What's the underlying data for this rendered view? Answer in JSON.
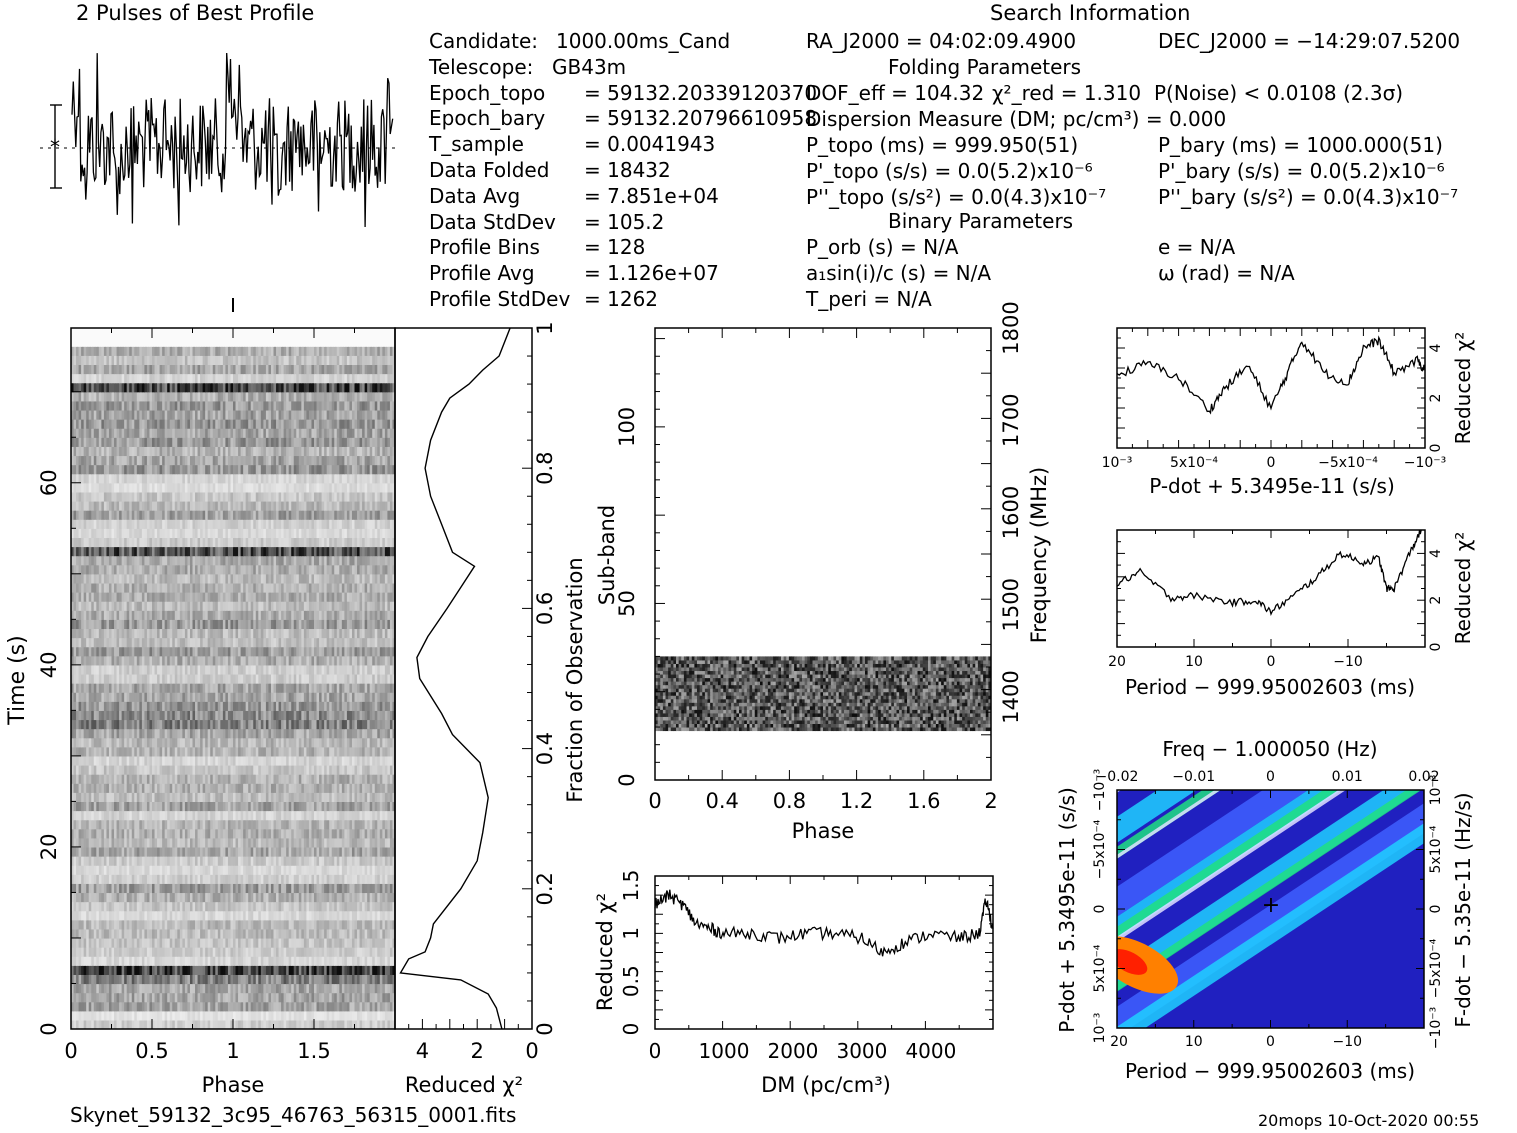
{
  "header": {
    "profile_title": "2 Pulses of Best Profile",
    "search_title": "Search Information",
    "folding_title": "Folding Parameters",
    "binary_title": "Binary Parameters",
    "footer_file": "Skynet_59132_3c95_46763_56315_0001.fits",
    "footer_stamp": "20mops 10-Oct-2020 00:55"
  },
  "candidate_info": [
    {
      "label": "Candidate:",
      "value": "1000.00ms_Cand"
    },
    {
      "label": "Telescope:",
      "value": "GB43m"
    },
    {
      "label": "Epoch_topo",
      "value": "= 59132.20339120370"
    },
    {
      "label": "Epoch_bary",
      "value": "= 59132.20796610958"
    },
    {
      "label": "T_sample",
      "value": "= 0.0041943"
    },
    {
      "label": "Data Folded",
      "value": "= 18432"
    },
    {
      "label": "Data Avg",
      "value": "= 7.851e+04"
    },
    {
      "label": "Data StdDev",
      "value": "= 105.2"
    },
    {
      "label": "Profile Bins",
      "value": "= 128"
    },
    {
      "label": "Profile Avg",
      "value": "= 1.126e+07"
    },
    {
      "label": "Profile StdDev",
      "value": "= 1262"
    }
  ],
  "search_info": {
    "ra": "RA_J2000 = 04:02:09.4900",
    "dec": "DEC_J2000 = −14:29:07.5200",
    "dof": "DOF_eff = 104.32",
    "chi2": "χ²_red = 1.310",
    "pnoise": "P(Noise) < 0.0108 (2.3σ)",
    "dm": "Dispersion Measure (DM; pc/cm³) = 0.000",
    "ptopo": "P_topo (ms) = 999.950(51)",
    "pbary": "P_bary (ms) = 1000.000(51)",
    "pdtopo": "P'_topo (s/s) = 0.0(5.2)x10⁻⁶",
    "pdbary": "P'_bary (s/s) = 0.0(5.2)x10⁻⁶",
    "pddtopo": "P''_topo (s/s²) = 0.0(4.3)x10⁻⁷",
    "pddbary": "P''_bary (s/s²) = 0.0(4.3)x10⁻⁷",
    "porb": "P_orb (s) = N/A",
    "e": "e = N/A",
    "a1": "a₁sin(i)/c (s) = N/A",
    "omega": "ω (rad) = N/A",
    "tperi": "T_peri = N/A"
  },
  "chart_data": [
    {
      "id": "profile",
      "type": "line",
      "title": "2 Pulses of Best Profile",
      "x_range": [
        0,
        2
      ],
      "note": "noisy folded profile, two pulses"
    },
    {
      "id": "time_phase",
      "type": "heatmap",
      "xlabel": "Phase",
      "ylabel": "Time (s)",
      "x_ticks": [
        "0",
        "0.5",
        "1",
        "1.5"
      ],
      "y_ticks": [
        "0",
        "20",
        "40",
        "60"
      ],
      "xlim": [
        0,
        2
      ],
      "ylim": [
        0,
        77
      ]
    },
    {
      "id": "time_chi2",
      "type": "line",
      "xlabel": "Reduced χ²",
      "ylabel": "Fraction of Observation",
      "x_ticks": [
        "4",
        "2",
        "0"
      ],
      "y_ticks": [
        "0",
        "0.2",
        "0.4",
        "0.6",
        "0.8",
        "1"
      ],
      "xlim": [
        5,
        0
      ],
      "ylim": [
        0,
        1
      ],
      "points": [
        [
          1.1,
          0
        ],
        [
          1.3,
          0.03
        ],
        [
          1.6,
          0.05
        ],
        [
          2.6,
          0.07
        ],
        [
          4.8,
          0.08
        ],
        [
          4.5,
          0.1
        ],
        [
          3.9,
          0.11
        ],
        [
          3.7,
          0.13
        ],
        [
          3.6,
          0.15
        ],
        [
          2.6,
          0.2
        ],
        [
          2.0,
          0.24
        ],
        [
          1.8,
          0.28
        ],
        [
          1.6,
          0.33
        ],
        [
          1.9,
          0.38
        ],
        [
          2.4,
          0.4
        ],
        [
          2.9,
          0.42
        ],
        [
          3.3,
          0.45
        ],
        [
          4.1,
          0.5
        ],
        [
          4.2,
          0.53
        ],
        [
          3.8,
          0.56
        ],
        [
          3.1,
          0.6
        ],
        [
          2.6,
          0.63
        ],
        [
          2.1,
          0.66
        ],
        [
          2.9,
          0.68
        ],
        [
          3.3,
          0.72
        ],
        [
          3.7,
          0.76
        ],
        [
          3.9,
          0.8
        ],
        [
          3.7,
          0.84
        ],
        [
          3.3,
          0.88
        ],
        [
          3.0,
          0.9
        ],
        [
          2.3,
          0.92
        ],
        [
          1.8,
          0.94
        ],
        [
          1.2,
          0.96
        ],
        [
          0.8,
          1.0
        ]
      ]
    },
    {
      "id": "freq_phase",
      "type": "heatmap",
      "xlabel": "Phase",
      "ylabel": "Sub-band",
      "ylabel_right": "Frequency (MHz)",
      "x_ticks": [
        "0",
        "0.4",
        "0.8",
        "1.2",
        "1.6",
        "2"
      ],
      "y_ticks": [
        "0",
        "50",
        "100"
      ],
      "y_ticks_right": [
        "1400",
        "1500",
        "1600",
        "1700",
        "1800"
      ],
      "xlim": [
        0,
        2
      ],
      "ylim": [
        0,
        128
      ],
      "band_range": [
        14,
        35
      ]
    },
    {
      "id": "dm_chi2",
      "type": "line",
      "xlabel": "DM (pc/cm³)",
      "ylabel": "Reduced χ²",
      "x_ticks": [
        "0",
        "1000",
        "2000",
        "3000",
        "4000"
      ],
      "y_ticks": [
        "0",
        "0.5",
        "1",
        "1.5"
      ],
      "xlim": [
        0,
        4900
      ],
      "ylim": [
        0,
        1.6
      ],
      "points": [
        [
          0,
          1.3
        ],
        [
          200,
          1.4
        ],
        [
          400,
          1.3
        ],
        [
          600,
          1.1
        ],
        [
          800,
          1.05
        ],
        [
          1000,
          1.0
        ],
        [
          1400,
          1.0
        ],
        [
          1800,
          0.95
        ],
        [
          2200,
          1.0
        ],
        [
          2600,
          1.0
        ],
        [
          3000,
          0.95
        ],
        [
          3300,
          0.8
        ],
        [
          3600,
          0.9
        ],
        [
          4000,
          1.0
        ],
        [
          4400,
          0.95
        ],
        [
          4700,
          1.0
        ],
        [
          4800,
          1.35
        ],
        [
          4900,
          1.05
        ]
      ]
    },
    {
      "id": "pdot_chi2",
      "type": "line",
      "xlabel": "P-dot + 5.3495e-11 (s/s)",
      "ylabel": "Reduced χ²",
      "x_ticks": [
        "10⁻³",
        "5x10⁻⁴",
        "0",
        "−5x10⁻⁴",
        "−10⁻³"
      ],
      "y_ticks": [
        "0",
        "2",
        "4"
      ],
      "xlim": [
        0.001,
        -0.001
      ],
      "ylim": [
        0,
        4.8
      ],
      "points": [
        [
          0.001,
          2.9
        ],
        [
          0.0008,
          3.4
        ],
        [
          0.0006,
          2.8
        ],
        [
          0.0004,
          1.5
        ],
        [
          0.0003,
          2.4
        ],
        [
          0.00015,
          3.3
        ],
        [
          0,
          1.6
        ],
        [
          -0.0001,
          2.9
        ],
        [
          -0.0002,
          4.3
        ],
        [
          -0.00035,
          3.0
        ],
        [
          -0.0005,
          2.6
        ],
        [
          -0.0006,
          4.0
        ],
        [
          -0.0007,
          4.3
        ],
        [
          -0.0008,
          3.0
        ],
        [
          -0.00095,
          3.5
        ],
        [
          -0.001,
          3.1
        ]
      ]
    },
    {
      "id": "period_chi2",
      "type": "line",
      "xlabel": "Period − 999.95002603 (ms)",
      "ylabel": "Reduced χ²",
      "x_ticks": [
        "20",
        "10",
        "0",
        "−10"
      ],
      "y_ticks": [
        "0",
        "2",
        "4"
      ],
      "xlim": [
        20,
        -20
      ],
      "ylim": [
        0,
        5
      ],
      "points": [
        [
          20,
          2.7
        ],
        [
          17,
          3.2
        ],
        [
          13,
          2.1
        ],
        [
          10,
          2.2
        ],
        [
          5,
          1.9
        ],
        [
          2,
          2.0
        ],
        [
          0,
          1.5
        ],
        [
          -3,
          2.2
        ],
        [
          -6,
          3.0
        ],
        [
          -9,
          4.0
        ],
        [
          -12,
          3.6
        ],
        [
          -14,
          3.8
        ],
        [
          -15,
          2.5
        ],
        [
          -16,
          2.5
        ],
        [
          -18,
          4.0
        ],
        [
          -19.5,
          5.0
        ]
      ]
    },
    {
      "id": "p_pdot_plane",
      "type": "heatmap",
      "title": "Freq − 1.000050 (Hz)",
      "xlabel": "Period − 999.95002603 (ms)",
      "ylabel": "P-dot + 5.3495e-11 (s/s)",
      "ylabel_right": "F-dot − 5.35e-11 (Hz/s)",
      "x_ticks": [
        "20",
        "10",
        "0",
        "−10"
      ],
      "x_ticks_top": [
        "−0.02",
        "−0.01",
        "0",
        "0.01",
        "0.02"
      ],
      "y_ticks": [
        "10⁻³",
        "5x10⁻⁴",
        "0",
        "−5x10⁻⁴",
        "−10⁻³"
      ],
      "y_ticks_right": [
        "−10⁻³",
        "−5x10⁻⁴",
        "0",
        "5x10⁻⁴",
        "10⁻³"
      ],
      "colors": [
        "#2020c0",
        "#4060ff",
        "#20d0ff",
        "#20e080",
        "#e0e0ff",
        "#ff8000",
        "#ff2000"
      ]
    }
  ]
}
